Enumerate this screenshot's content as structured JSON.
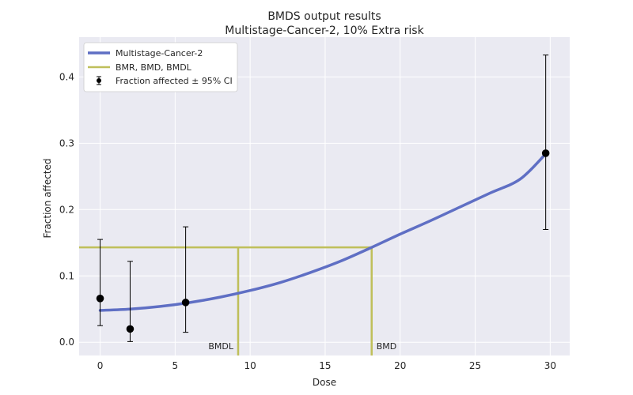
{
  "chart_data": {
    "type": "line",
    "title": "BMDS output results",
    "subtitle": "Multistage-Cancer-2, 10% Extra risk",
    "xlabel": "Dose",
    "ylabel": "Fraction affected",
    "xlim": [
      -1.4,
      31.3
    ],
    "ylim": [
      -0.02,
      0.46
    ],
    "xticks": [
      0,
      5,
      10,
      15,
      20,
      25,
      30
    ],
    "yticks": [
      0.0,
      0.1,
      0.2,
      0.3,
      0.4
    ],
    "xtick_labels": [
      "0",
      "5",
      "10",
      "15",
      "20",
      "25",
      "30"
    ],
    "ytick_labels": [
      "0.0",
      "0.1",
      "0.2",
      "0.3",
      "0.4"
    ],
    "grid": true,
    "legend_position": "top-left",
    "legend": [
      "Multistage-Cancer-2",
      "BMR, BMD, BMDL",
      "Fraction affected ± 95% CI"
    ],
    "model_curve": {
      "name": "Multistage-Cancer-2",
      "color": "#5f6fc4",
      "x": [
        0,
        2,
        4,
        6,
        8,
        10,
        12,
        14,
        16,
        18,
        20,
        22,
        24,
        26,
        28,
        29.7
      ],
      "y": [
        0.048,
        0.05,
        0.054,
        0.06,
        0.068,
        0.078,
        0.09,
        0.105,
        0.122,
        0.142,
        0.163,
        0.183,
        0.204,
        0.225,
        0.246,
        0.284
      ]
    },
    "bmr_lines": {
      "name": "BMR, BMD, BMDL",
      "color": "#bfbf5a",
      "bmr": 0.143,
      "bmd": 18.1,
      "bmdl": 9.2,
      "bmd_label": "BMD",
      "bmdl_label": "BMDL"
    },
    "observations": {
      "name": "Fraction affected ± 95% CI",
      "color": "#000000",
      "points": [
        {
          "x": 0,
          "y": 0.066,
          "lo": 0.025,
          "hi": 0.155
        },
        {
          "x": 2,
          "y": 0.02,
          "lo": 0.001,
          "hi": 0.122
        },
        {
          "x": 5.7,
          "y": 0.06,
          "lo": 0.015,
          "hi": 0.174
        },
        {
          "x": 29.7,
          "y": 0.285,
          "lo": 0.17,
          "hi": 0.433
        }
      ]
    }
  }
}
